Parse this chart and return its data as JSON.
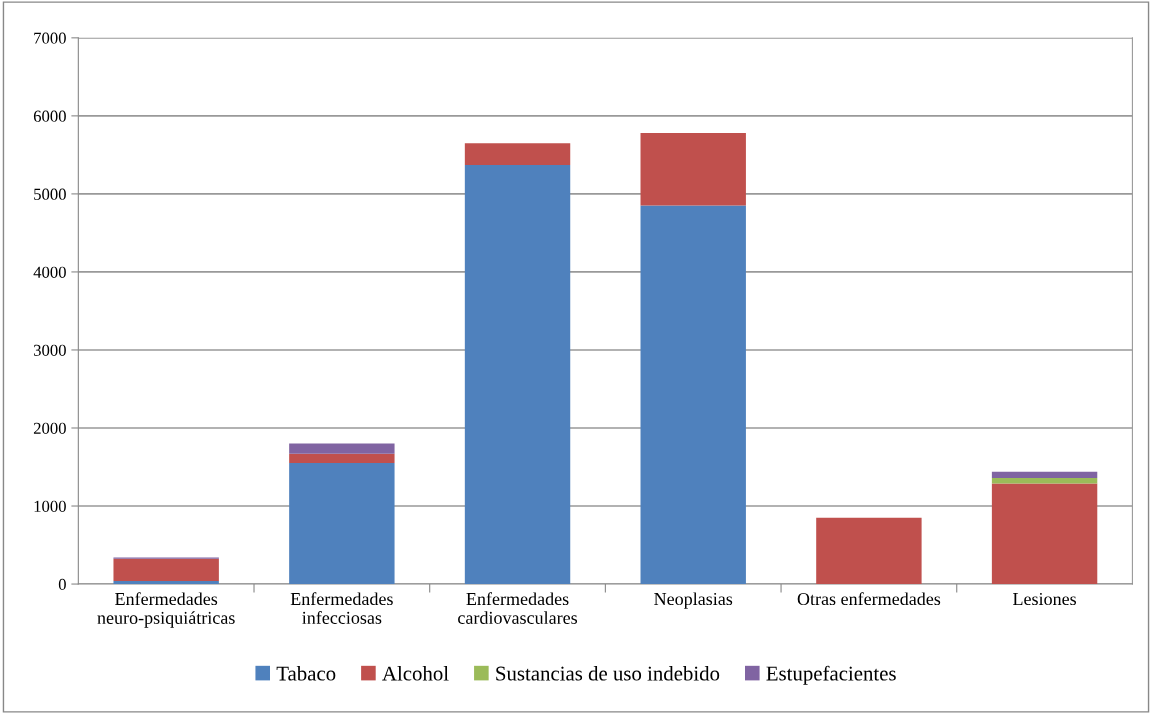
{
  "chart_data": {
    "type": "bar",
    "stacked": true,
    "categories": [
      "Enfermedades\nneuro-psiquiátricas",
      "Enfermedades\ninfecciosas",
      "Enfermedades\ncardiovasculares",
      "Neoplasias",
      "Otras enfermedades",
      "Lesiones"
    ],
    "series": [
      {
        "name": "Tabaco",
        "color": "#4f81bd",
        "values": [
          40,
          1550,
          5370,
          4850,
          0,
          0
        ]
      },
      {
        "name": "Alcohol",
        "color": "#c0504d",
        "values": [
          285,
          120,
          280,
          930,
          850,
          1290
        ]
      },
      {
        "name": "Sustancias de uso indebido",
        "color": "#9bbb59",
        "values": [
          0,
          0,
          0,
          0,
          0,
          70
        ]
      },
      {
        "name": "Estupefacientes",
        "color": "#8064a2",
        "values": [
          15,
          130,
          0,
          0,
          0,
          80
        ]
      }
    ],
    "ylim": [
      0,
      7000
    ],
    "yticks": [
      0,
      1000,
      2000,
      3000,
      4000,
      5000,
      6000,
      7000
    ],
    "grid": "y",
    "legend": "bottom"
  }
}
